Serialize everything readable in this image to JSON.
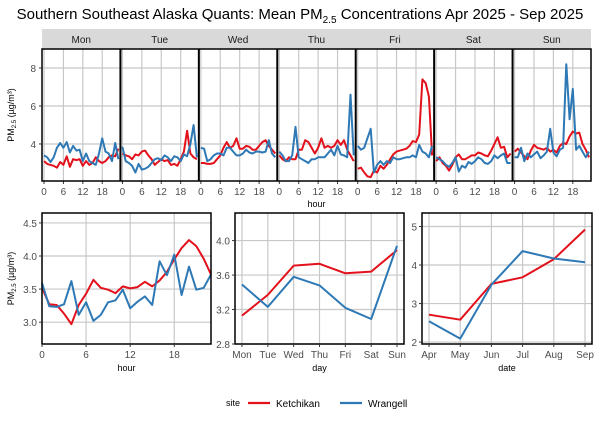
{
  "title_main": "Southern Southeast Alaska Quants: Mean PM",
  "title_sub": "2.5",
  "title_rest": " Concentrations Apr 2025 - Sep 2025",
  "legend": {
    "title": "site",
    "position": "bottom",
    "entries": [
      {
        "name": "Ketchikan",
        "color": "#e3111b"
      },
      {
        "name": "Wrangell",
        "color": "#2e79b5"
      }
    ]
  },
  "chart_data": [
    {
      "type": "line",
      "id": "weekday-hour",
      "title": "",
      "xlabel": "hour",
      "ylabel": "PM2.5 (µg/m³)",
      "facets": [
        "Mon",
        "Tue",
        "Wed",
        "Thu",
        "Fri",
        "Sat",
        "Sun"
      ],
      "x_ticks": [
        0,
        6,
        12,
        18
      ],
      "y_ticks": [
        4,
        6,
        8
      ],
      "ylim": [
        2.05,
        9.0
      ],
      "xlim": [
        0,
        23
      ],
      "grid": true,
      "series": [
        {
          "name": "Ketchikan",
          "values": {
            "Mon": [
              3.1,
              2.95,
              2.9,
              2.85,
              2.75,
              3.05,
              2.9,
              3.35,
              2.8,
              3.2,
              3.15,
              3.2,
              2.85,
              3.1,
              2.9,
              3.0,
              3.3,
              3.1,
              3.0,
              3.1,
              3.3,
              3.4,
              3.35,
              3.75
            ],
            "Tue": [
              3.5,
              3.4,
              3.35,
              3.2,
              3.45,
              3.4,
              3.6,
              3.65,
              3.4,
              3.2,
              2.9,
              3.05,
              3.2,
              3.1,
              3.15,
              2.9,
              2.95,
              2.85,
              3.2,
              3.6,
              4.7,
              3.5,
              3.3,
              3.2
            ],
            "Wed": [
              3.0,
              3.0,
              2.95,
              2.95,
              3.0,
              3.2,
              3.4,
              3.8,
              4.1,
              3.8,
              3.9,
              4.3,
              3.75,
              3.75,
              3.9,
              3.85,
              3.7,
              3.7,
              3.9,
              4.1,
              4.2,
              3.9,
              3.7,
              3.5
            ],
            "Thu": [
              3.4,
              3.2,
              3.1,
              3.3,
              3.2,
              3.2,
              3.7,
              3.7,
              4.2,
              4.1,
              3.8,
              3.5,
              3.8,
              4.3,
              3.8,
              3.9,
              3.8,
              3.9,
              4.2,
              3.95,
              4.2,
              3.7,
              3.4,
              3.1
            ],
            "Fri": [
              2.7,
              2.75,
              2.5,
              2.3,
              2.25,
              2.6,
              2.5,
              2.85,
              2.7,
              2.9,
              3.2,
              3.45,
              3.6,
              3.65,
              3.7,
              3.75,
              3.9,
              4.15,
              4.1,
              4.5,
              7.4,
              7.2,
              6.5,
              3.4
            ],
            "Sat": [
              3.1,
              3.3,
              3.0,
              2.85,
              2.6,
              2.9,
              3.3,
              3.45,
              3.2,
              3.2,
              3.3,
              3.4,
              3.4,
              3.55,
              3.5,
              3.4,
              3.35,
              3.65,
              4.0,
              4.35,
              3.8,
              3.85,
              3.3,
              3.5
            ],
            "Sun": [
              3.6,
              3.75,
              3.55,
              3.35,
              3.2,
              3.65,
              3.95,
              3.8,
              3.75,
              3.7,
              3.8,
              3.6,
              3.7,
              3.55,
              3.9,
              4.05,
              4.0,
              4.4,
              4.65,
              4.55,
              4.6,
              4.0,
              3.7,
              3.3
            ]
          }
        },
        {
          "name": "Wrangell",
          "values": {
            "Mon": [
              3.4,
              3.3,
              3.05,
              3.3,
              3.8,
              4.05,
              3.8,
              4.1,
              3.55,
              3.9,
              3.65,
              3.7,
              3.1,
              3.5,
              3.1,
              3.0,
              2.9,
              3.5,
              4.3,
              3.6,
              3.5,
              3.1,
              4.05,
              3.2
            ],
            "Tue": [
              3.85,
              3.1,
              3.0,
              2.85,
              2.5,
              2.95,
              2.65,
              2.7,
              2.8,
              3.0,
              3.2,
              3.25,
              3.15,
              3.4,
              3.3,
              3.1,
              3.35,
              3.3,
              3.1,
              3.45,
              3.35,
              4.0,
              5.0,
              3.3
            ],
            "Wed": [
              3.8,
              3.75,
              3.1,
              3.2,
              3.4,
              3.5,
              3.5,
              3.4,
              3.8,
              3.8,
              3.6,
              3.4,
              3.4,
              3.5,
              3.7,
              3.55,
              3.5,
              3.6,
              3.6,
              3.55,
              3.6,
              4.2,
              3.5,
              3.3
            ],
            "Thu": [
              3.6,
              3.4,
              3.1,
              3.1,
              3.4,
              4.9,
              3.3,
              3.2,
              3.1,
              3.0,
              3.2,
              3.2,
              3.3,
              3.3,
              3.3,
              3.5,
              3.7,
              3.4,
              3.9,
              3.45,
              3.4,
              3.3,
              6.6,
              3.4
            ],
            "Fri": [
              3.9,
              3.7,
              3.8,
              4.3,
              4.8,
              2.5,
              2.9,
              3.1,
              2.9,
              3.1,
              3.0,
              3.3,
              3.2,
              3.2,
              3.25,
              3.3,
              3.3,
              3.4,
              3.3,
              3.95,
              3.6,
              3.5,
              3.3,
              3.9
            ],
            "Sat": [
              3.3,
              3.2,
              3.1,
              2.9,
              2.8,
              3.0,
              3.3,
              2.55,
              2.85,
              2.75,
              3.05,
              2.95,
              3.1,
              3.3,
              3.2,
              3.0,
              2.95,
              3.1,
              3.4,
              3.25,
              3.4,
              3.5,
              3.0,
              3.0
            ],
            "Sun": [
              3.3,
              3.3,
              3.8,
              3.1,
              3.5,
              3.3,
              3.45,
              3.6,
              3.25,
              3.4,
              3.6,
              4.8,
              3.55,
              3.35,
              3.7,
              3.8,
              8.2,
              5.3,
              6.9,
              3.7,
              3.9,
              3.6,
              3.3,
              3.6
            ]
          }
        }
      ]
    },
    {
      "type": "line",
      "id": "hour",
      "title": "",
      "xlabel": "hour",
      "ylabel": "PM2.5 (µg/m³)",
      "x": [
        0,
        1,
        2,
        3,
        4,
        5,
        6,
        7,
        8,
        9,
        10,
        11,
        12,
        13,
        14,
        15,
        16,
        17,
        18,
        19,
        20,
        21,
        22,
        23
      ],
      "x_ticks": [
        0,
        6,
        12,
        18
      ],
      "y_ticks": [
        3.0,
        3.5,
        4.0,
        4.5
      ],
      "ylim": [
        2.67,
        4.65
      ],
      "xlim": [
        0,
        23
      ],
      "grid": true,
      "series": [
        {
          "name": "Ketchikan",
          "values": [
            3.52,
            3.27,
            3.26,
            3.13,
            2.97,
            3.26,
            3.43,
            3.64,
            3.52,
            3.49,
            3.44,
            3.54,
            3.51,
            3.53,
            3.61,
            3.54,
            3.63,
            3.76,
            3.95,
            4.12,
            4.24,
            4.15,
            3.96,
            3.72
          ]
        },
        {
          "name": "Wrangell",
          "values": [
            3.59,
            3.24,
            3.23,
            3.27,
            3.62,
            3.11,
            3.3,
            3.02,
            3.11,
            3.3,
            3.33,
            3.49,
            3.21,
            3.31,
            3.39,
            3.26,
            3.92,
            3.71,
            4.02,
            3.41,
            3.84,
            3.49,
            3.52,
            3.72
          ]
        }
      ]
    },
    {
      "type": "line",
      "id": "day",
      "title": "",
      "xlabel": "day",
      "ylabel": "",
      "categories": [
        "Mon",
        "Tue",
        "Wed",
        "Thu",
        "Fri",
        "Sat",
        "Sun"
      ],
      "y_ticks": [
        2.8,
        3.2,
        3.6,
        4.0
      ],
      "ylim": [
        2.8,
        4.32
      ],
      "grid": true,
      "series": [
        {
          "name": "Ketchikan",
          "values": [
            3.13,
            3.37,
            3.71,
            3.73,
            3.62,
            3.64,
            3.89
          ]
        },
        {
          "name": "Wrangell",
          "values": [
            3.49,
            3.23,
            3.58,
            3.48,
            3.22,
            3.09,
            3.94
          ]
        }
      ]
    },
    {
      "type": "line",
      "id": "date",
      "title": "",
      "xlabel": "date",
      "ylabel": "",
      "categories": [
        "Apr",
        "May",
        "Jun",
        "Jul",
        "Aug",
        "Sep"
      ],
      "y_ticks": [
        2,
        3,
        4,
        5
      ],
      "ylim": [
        1.95,
        5.35
      ],
      "grid": true,
      "series": [
        {
          "name": "Ketchikan",
          "values": [
            2.71,
            2.58,
            3.51,
            3.68,
            4.15,
            4.92
          ]
        },
        {
          "name": "Wrangell",
          "values": [
            2.54,
            2.09,
            3.49,
            4.36,
            4.17,
            4.07
          ]
        }
      ]
    }
  ]
}
